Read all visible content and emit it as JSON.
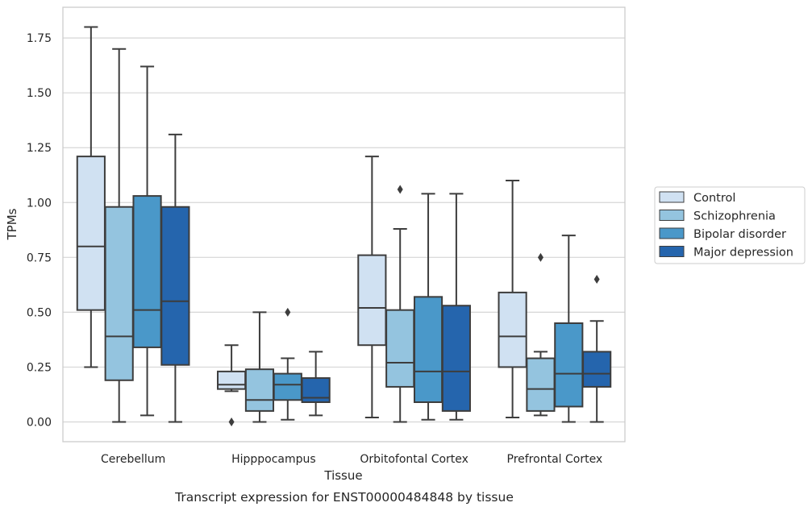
{
  "caption": "Transcript expression for ENST00000484848 by tissue",
  "chart_data": {
    "type": "boxplot",
    "xlabel": "Tissue",
    "ylabel": "TPMs",
    "ylim": [
      -0.09,
      1.89
    ],
    "yticks": [
      0.0,
      0.25,
      0.5,
      0.75,
      1.0,
      1.25,
      1.5,
      1.75
    ],
    "ytick_labels": [
      "0.00",
      "0.25",
      "0.50",
      "0.75",
      "1.00",
      "1.25",
      "1.50",
      "1.75"
    ],
    "grid": "horizontal",
    "legend_position": "right",
    "categories": [
      "Cerebellum",
      "Hipppocampus",
      "Orbitofontal Cortex",
      "Prefrontal Cortex"
    ],
    "series": [
      {
        "name": "Control",
        "color": "#d0e1f2",
        "boxes": [
          {
            "whisker_low": 0.25,
            "q1": 0.51,
            "median": 0.8,
            "q3": 1.21,
            "whisker_high": 1.8,
            "outliers": []
          },
          {
            "whisker_low": 0.14,
            "q1": 0.15,
            "median": 0.17,
            "q3": 0.23,
            "whisker_high": 0.35,
            "outliers": [
              0.0
            ]
          },
          {
            "whisker_low": 0.02,
            "q1": 0.35,
            "median": 0.52,
            "q3": 0.76,
            "whisker_high": 1.21,
            "outliers": []
          },
          {
            "whisker_low": 0.02,
            "q1": 0.25,
            "median": 0.39,
            "q3": 0.59,
            "whisker_high": 1.1,
            "outliers": []
          }
        ]
      },
      {
        "name": "Schizophrenia",
        "color": "#94c4df",
        "boxes": [
          {
            "whisker_low": 0.0,
            "q1": 0.19,
            "median": 0.39,
            "q3": 0.98,
            "whisker_high": 1.7,
            "outliers": []
          },
          {
            "whisker_low": 0.0,
            "q1": 0.05,
            "median": 0.1,
            "q3": 0.24,
            "whisker_high": 0.5,
            "outliers": []
          },
          {
            "whisker_low": 0.0,
            "q1": 0.16,
            "median": 0.27,
            "q3": 0.51,
            "whisker_high": 0.88,
            "outliers": [
              1.06
            ]
          },
          {
            "whisker_low": 0.03,
            "q1": 0.05,
            "median": 0.15,
            "q3": 0.29,
            "whisker_high": 0.32,
            "outliers": [
              0.75
            ]
          }
        ]
      },
      {
        "name": "Bipolar disorder",
        "color": "#4a98c9",
        "boxes": [
          {
            "whisker_low": 0.03,
            "q1": 0.34,
            "median": 0.51,
            "q3": 1.03,
            "whisker_high": 1.62,
            "outliers": []
          },
          {
            "whisker_low": 0.01,
            "q1": 0.1,
            "median": 0.17,
            "q3": 0.22,
            "whisker_high": 0.29,
            "outliers": [
              0.5
            ]
          },
          {
            "whisker_low": 0.01,
            "q1": 0.09,
            "median": 0.23,
            "q3": 0.57,
            "whisker_high": 1.04,
            "outliers": []
          },
          {
            "whisker_low": 0.0,
            "q1": 0.07,
            "median": 0.22,
            "q3": 0.45,
            "whisker_high": 0.85,
            "outliers": []
          }
        ]
      },
      {
        "name": "Major depression",
        "color": "#2565ad",
        "boxes": [
          {
            "whisker_low": 0.0,
            "q1": 0.26,
            "median": 0.55,
            "q3": 0.98,
            "whisker_high": 1.31,
            "outliers": []
          },
          {
            "whisker_low": 0.03,
            "q1": 0.09,
            "median": 0.11,
            "q3": 0.2,
            "whisker_high": 0.32,
            "outliers": []
          },
          {
            "whisker_low": 0.01,
            "q1": 0.05,
            "median": 0.23,
            "q3": 0.53,
            "whisker_high": 1.04,
            "outliers": []
          },
          {
            "whisker_low": 0.0,
            "q1": 0.16,
            "median": 0.22,
            "q3": 0.32,
            "whisker_high": 0.46,
            "outliers": [
              0.65
            ]
          }
        ]
      }
    ]
  }
}
